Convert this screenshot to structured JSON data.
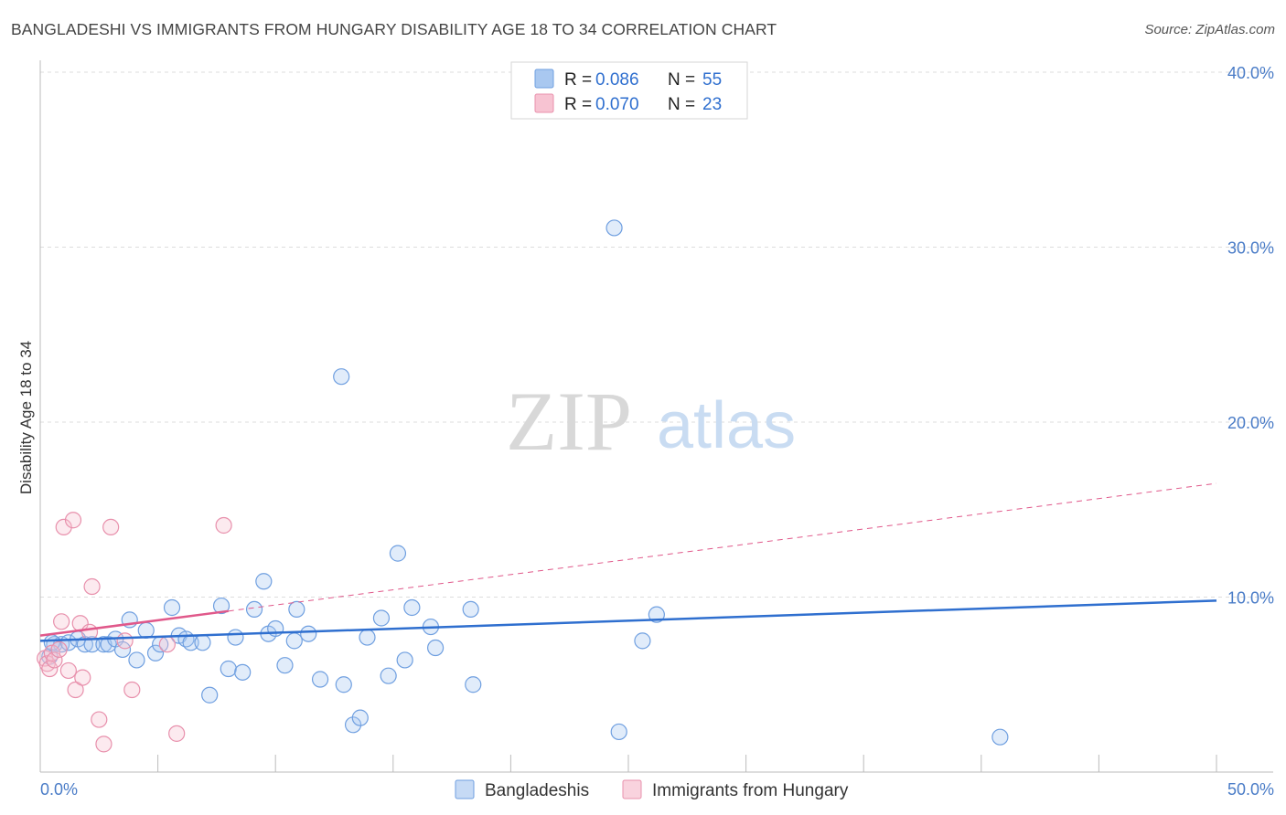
{
  "title": "BANGLADESHI VS IMMIGRANTS FROM HUNGARY DISABILITY AGE 18 TO 34 CORRELATION CHART",
  "source": "Source: ZipAtlas.com",
  "watermark": {
    "zip": "ZIP",
    "atlas": "atlas"
  },
  "legend": {
    "rows": [
      {
        "r_label": "R =",
        "r_value": "0.086",
        "n_label": "N =",
        "n_value": "55",
        "color": "#a9c8f0",
        "stroke": "#6f9fe0"
      },
      {
        "r_label": "R =",
        "r_value": "0.070",
        "n_label": "N =",
        "n_value": "23",
        "color": "#f7c3d2",
        "stroke": "#e890ac"
      }
    ]
  },
  "bottom_legend": [
    {
      "label": "Bangladeshis",
      "color": "#c6daf5",
      "stroke": "#6f9fe0"
    },
    {
      "label": "Immigrants from Hungary",
      "color": "#f9d3de",
      "stroke": "#e890ac"
    }
  ],
  "colors": {
    "blue": "#2f6fcf",
    "pink": "#e0588a",
    "blue_fill": "rgba(169,200,240,0.35)",
    "blue_stroke": "#6f9fe0",
    "pink_fill": "rgba(247,195,210,0.35)",
    "pink_stroke": "#e890ac"
  },
  "chart_data": {
    "type": "scatter",
    "title": "BANGLADESHI VS IMMIGRANTS FROM HUNGARY DISABILITY AGE 18 TO 34 CORRELATION CHART",
    "xlabel": "",
    "ylabel": "Disability Age 18 to 34",
    "xlim": [
      0,
      50
    ],
    "ylim": [
      0,
      40
    ],
    "x_tick_labels": [
      {
        "value": 0,
        "label": "0.0%"
      },
      {
        "value": 50,
        "label": "50.0%"
      }
    ],
    "y_tick_labels": [
      {
        "value": 10,
        "label": "10.0%"
      },
      {
        "value": 20,
        "label": "20.0%"
      },
      {
        "value": 30,
        "label": "30.0%"
      },
      {
        "value": 40,
        "label": "40.0%"
      }
    ],
    "series": [
      {
        "name": "Bangladeshis",
        "points": [
          [
            0.4,
            6.6
          ],
          [
            0.6,
            7.3
          ],
          [
            0.9,
            7.3
          ],
          [
            1.2,
            7.4
          ],
          [
            1.6,
            7.6
          ],
          [
            1.9,
            7.3
          ],
          [
            2.2,
            7.3
          ],
          [
            2.7,
            7.3
          ],
          [
            2.9,
            7.3
          ],
          [
            3.2,
            7.6
          ],
          [
            3.5,
            7.0
          ],
          [
            3.8,
            8.7
          ],
          [
            4.1,
            6.4
          ],
          [
            4.5,
            8.1
          ],
          [
            4.9,
            6.8
          ],
          [
            5.1,
            7.3
          ],
          [
            5.6,
            9.4
          ],
          [
            5.9,
            7.8
          ],
          [
            6.2,
            7.6
          ],
          [
            6.4,
            7.4
          ],
          [
            6.9,
            7.4
          ],
          [
            7.2,
            4.4
          ],
          [
            7.7,
            9.5
          ],
          [
            8.0,
            5.9
          ],
          [
            8.3,
            7.7
          ],
          [
            8.6,
            5.7
          ],
          [
            9.1,
            9.3
          ],
          [
            9.5,
            10.9
          ],
          [
            9.7,
            7.9
          ],
          [
            10.0,
            8.2
          ],
          [
            10.4,
            6.1
          ],
          [
            10.8,
            7.5
          ],
          [
            10.9,
            9.3
          ],
          [
            11.4,
            7.9
          ],
          [
            11.9,
            5.3
          ],
          [
            12.8,
            22.6
          ],
          [
            12.9,
            5.0
          ],
          [
            13.3,
            2.7
          ],
          [
            13.6,
            3.1
          ],
          [
            13.9,
            7.7
          ],
          [
            14.5,
            8.8
          ],
          [
            14.8,
            5.5
          ],
          [
            15.2,
            12.5
          ],
          [
            15.5,
            6.4
          ],
          [
            15.8,
            9.4
          ],
          [
            16.6,
            8.3
          ],
          [
            16.8,
            7.1
          ],
          [
            18.3,
            9.3
          ],
          [
            18.4,
            5.0
          ],
          [
            24.4,
            31.1
          ],
          [
            24.6,
            2.3
          ],
          [
            25.6,
            7.5
          ],
          [
            26.2,
            9.0
          ],
          [
            40.8,
            2.0
          ],
          [
            0.5,
            7.4
          ]
        ]
      },
      {
        "name": "Immigrants from Hungary",
        "points": [
          [
            0.2,
            6.5
          ],
          [
            0.3,
            6.2
          ],
          [
            0.4,
            5.9
          ],
          [
            0.5,
            6.8
          ],
          [
            0.6,
            6.4
          ],
          [
            0.8,
            7.0
          ],
          [
            0.9,
            8.6
          ],
          [
            1.0,
            14.0
          ],
          [
            1.2,
            5.8
          ],
          [
            1.4,
            14.4
          ],
          [
            1.5,
            4.7
          ],
          [
            1.7,
            8.5
          ],
          [
            1.8,
            5.4
          ],
          [
            2.1,
            8.0
          ],
          [
            2.2,
            10.6
          ],
          [
            2.5,
            3.0
          ],
          [
            2.7,
            1.6
          ],
          [
            3.0,
            14.0
          ],
          [
            3.6,
            7.5
          ],
          [
            3.9,
            4.7
          ],
          [
            5.4,
            7.3
          ],
          [
            5.8,
            2.2
          ],
          [
            7.8,
            14.1
          ]
        ]
      }
    ],
    "trendlines": [
      {
        "series": "Bangladeshis",
        "x": [
          0,
          50
        ],
        "y": [
          7.5,
          9.8
        ],
        "style": "solid"
      },
      {
        "series": "Immigrants from Hungary",
        "x": [
          0,
          8
        ],
        "y": [
          7.8,
          9.2
        ],
        "style": "solid"
      },
      {
        "series": "Immigrants from Hungary",
        "x": [
          8,
          50
        ],
        "y": [
          9.2,
          16.5
        ],
        "style": "dashed"
      }
    ],
    "legend_position": "top-center",
    "grid": true
  }
}
